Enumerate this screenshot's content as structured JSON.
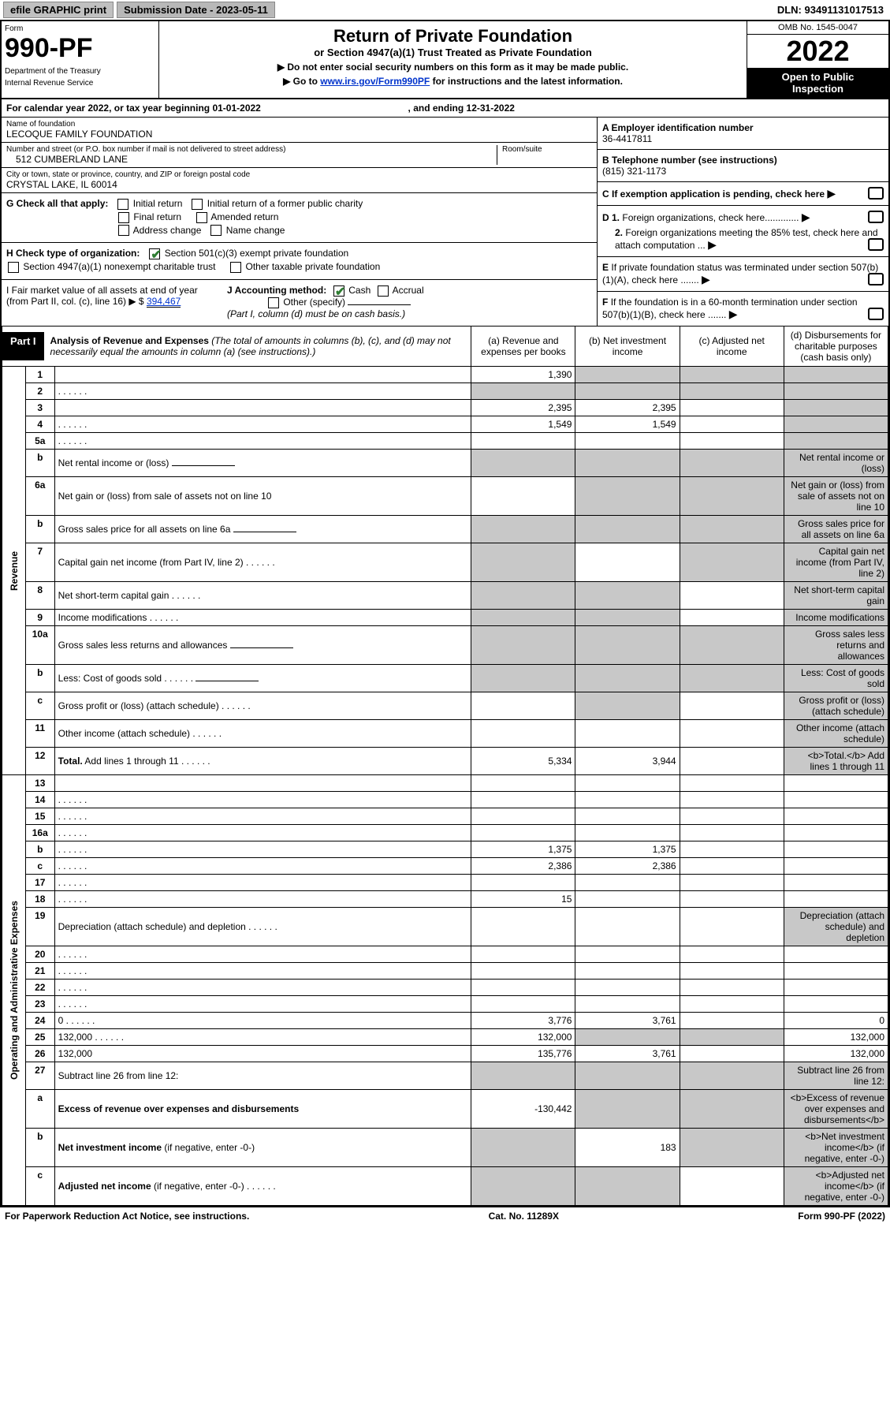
{
  "colors": {
    "black": "#000000",
    "white": "#ffffff",
    "grey_btn": "#c0c0c0",
    "grey_shade": "#c8c8c8",
    "link_blue": "#0033cc",
    "check_green": "#2e7d32"
  },
  "topbar": {
    "efile": "efile GRAPHIC print",
    "submission_label": "Submission Date - 2023-05-11",
    "dln": "DLN: 93491131017513"
  },
  "header": {
    "form_word": "Form",
    "form_number": "990-PF",
    "dept1": "Department of the Treasury",
    "dept2": "Internal Revenue Service",
    "title": "Return of Private Foundation",
    "subtitle": "or Section 4947(a)(1) Trust Treated as Private Foundation",
    "note1": "▶ Do not enter social security numbers on this form as it may be made public.",
    "note2_pre": "▶ Go to ",
    "note2_link": "www.irs.gov/Form990PF",
    "note2_post": " for instructions and the latest information.",
    "omb": "OMB No. 1545-0047",
    "year": "2022",
    "inspect1": "Open to Public",
    "inspect2": "Inspection"
  },
  "cal": {
    "text_pre": "For calendar year 2022, or tax year beginning ",
    "begin": "01-01-2022",
    "text_mid": " , and ending ",
    "end": "12-31-2022"
  },
  "identity": {
    "name_lbl": "Name of foundation",
    "name_val": "LECOQUE FAMILY FOUNDATION",
    "addr_lbl": "Number and street (or P.O. box number if mail is not delivered to street address)",
    "room_lbl": "Room/suite",
    "addr_val": "512 CUMBERLAND LANE",
    "city_lbl": "City or town, state or province, country, and ZIP or foreign postal code",
    "city_val": "CRYSTAL LAKE, IL  60014",
    "ein_lbl": "A Employer identification number",
    "ein_val": "36-4417811",
    "tel_lbl": "B Telephone number (see instructions)",
    "tel_val": "(815) 321-1173",
    "c_lbl": "C If exemption application is pending, check here",
    "d1_lbl": "D 1. Foreign organizations, check here.............",
    "d2_lbl": "2. Foreign organizations meeting the 85% test, check here and attach computation ...",
    "e_lbl": "E  If private foundation status was terminated under section 507(b)(1)(A), check here .......",
    "f_lbl": "F  If the foundation is in a 60-month termination under section 507(b)(1)(B), check here .......",
    "g_lbl": "G Check all that apply:",
    "g_opts": [
      "Initial return",
      "Initial return of a former public charity",
      "Final return",
      "Amended return",
      "Address change",
      "Name change"
    ],
    "h_lbl": "H Check type of organization:",
    "h_opt1": "Section 501(c)(3) exempt private foundation",
    "h_opt2": "Section 4947(a)(1) nonexempt charitable trust",
    "h_opt3": "Other taxable private foundation",
    "i_lbl": "I Fair market value of all assets at end of year (from Part II, col. (c), line 16) ▶ $",
    "i_val": "394,467",
    "j_lbl": "J Accounting method:",
    "j_opt1": "Cash",
    "j_opt2": "Accrual",
    "j_opt3": "Other (specify)",
    "j_note": "(Part I, column (d) must be on cash basis.)"
  },
  "part1": {
    "tag": "Part I",
    "title": "Analysis of Revenue and Expenses",
    "note": "(The total of amounts in columns (b), (c), and (d) may not necessarily equal the amounts in column (a) (see instructions).)",
    "col_a": "(a)   Revenue and expenses per books",
    "col_b": "(b)   Net investment income",
    "col_c": "(c)   Adjusted net income",
    "col_d": "(d)   Disbursements for charitable purposes (cash basis only)",
    "vlabel_rev": "Revenue",
    "vlabel_exp": "Operating and Administrative Expenses"
  },
  "rows": [
    {
      "n": "1",
      "d": "",
      "a": "1,390",
      "b": "",
      "c": "",
      "shade_b": true,
      "shade_c": true,
      "shade_d": true
    },
    {
      "n": "2",
      "d": "",
      "dots": true,
      "a": "",
      "b": "",
      "c": "",
      "shade_all": true
    },
    {
      "n": "3",
      "d": "",
      "a": "2,395",
      "b": "2,395",
      "c": "",
      "shade_d": true
    },
    {
      "n": "4",
      "d": "",
      "dots": true,
      "a": "1,549",
      "b": "1,549",
      "c": "",
      "shade_d": true
    },
    {
      "n": "5a",
      "d": "",
      "dots": true,
      "a": "",
      "b": "",
      "c": "",
      "shade_d": true
    },
    {
      "n": "b",
      "d": "Net rental income or (loss)",
      "line": true,
      "shade_a": true,
      "shade_b": true,
      "shade_c": true,
      "shade_d": true
    },
    {
      "n": "6a",
      "d": "Net gain or (loss) from sale of assets not on line 10",
      "a": "",
      "shade_b": true,
      "shade_c": true,
      "shade_d": true
    },
    {
      "n": "b",
      "d": "Gross sales price for all assets on line 6a",
      "line": true,
      "shade_a": true,
      "shade_b": true,
      "shade_c": true,
      "shade_d": true
    },
    {
      "n": "7",
      "d": "Capital gain net income (from Part IV, line 2)",
      "dots": true,
      "shade_a": true,
      "b": "",
      "shade_c": true,
      "shade_d": true
    },
    {
      "n": "8",
      "d": "Net short-term capital gain",
      "dots": true,
      "shade_a": true,
      "shade_b": true,
      "c": "",
      "shade_d": true
    },
    {
      "n": "9",
      "d": "Income modifications",
      "dots": true,
      "shade_a": true,
      "shade_b": true,
      "c": "",
      "shade_d": true
    },
    {
      "n": "10a",
      "d": "Gross sales less returns and allowances",
      "line": true,
      "shade_a": true,
      "shade_b": true,
      "shade_c": true,
      "shade_d": true
    },
    {
      "n": "b",
      "d": "Less: Cost of goods sold",
      "dots": true,
      "line": true,
      "shade_a": true,
      "shade_b": true,
      "shade_c": true,
      "shade_d": true
    },
    {
      "n": "c",
      "d": "Gross profit or (loss) (attach schedule)",
      "dots": true,
      "a": "",
      "shade_b": true,
      "c": "",
      "shade_d": true
    },
    {
      "n": "11",
      "d": "Other income (attach schedule)",
      "dots": true,
      "a": "",
      "b": "",
      "c": "",
      "shade_d": true
    },
    {
      "n": "12",
      "d": "<b>Total.</b> Add lines 1 through 11",
      "dots": true,
      "a": "5,334",
      "b": "3,944",
      "c": "",
      "shade_d": true,
      "bold": true
    },
    {
      "n": "13",
      "d": "",
      "a": "",
      "b": "",
      "c": ""
    },
    {
      "n": "14",
      "d": "",
      "dots": true,
      "a": "",
      "b": "",
      "c": ""
    },
    {
      "n": "15",
      "d": "",
      "dots": true,
      "a": "",
      "b": "",
      "c": ""
    },
    {
      "n": "16a",
      "d": "",
      "dots": true,
      "a": "",
      "b": "",
      "c": ""
    },
    {
      "n": "b",
      "d": "",
      "dots": true,
      "a": "1,375",
      "b": "1,375",
      "c": ""
    },
    {
      "n": "c",
      "d": "",
      "dots": true,
      "a": "2,386",
      "b": "2,386",
      "c": ""
    },
    {
      "n": "17",
      "d": "",
      "dots": true,
      "a": "",
      "b": "",
      "c": ""
    },
    {
      "n": "18",
      "d": "",
      "dots": true,
      "a": "15",
      "b": "",
      "c": ""
    },
    {
      "n": "19",
      "d": "Depreciation (attach schedule) and depletion",
      "dots": true,
      "a": "",
      "b": "",
      "c": "",
      "shade_d": true
    },
    {
      "n": "20",
      "d": "",
      "dots": true,
      "a": "",
      "b": "",
      "c": ""
    },
    {
      "n": "21",
      "d": "",
      "dots": true,
      "a": "",
      "b": "",
      "c": ""
    },
    {
      "n": "22",
      "d": "",
      "dots": true,
      "a": "",
      "b": "",
      "c": ""
    },
    {
      "n": "23",
      "d": "",
      "dots": true,
      "a": "",
      "b": "",
      "c": ""
    },
    {
      "n": "24",
      "d": "0",
      "dots": true,
      "a": "3,776",
      "b": "3,761",
      "c": "",
      "bold": true
    },
    {
      "n": "25",
      "d": "132,000",
      "dots": true,
      "a": "132,000",
      "shade_b": true,
      "shade_c": true
    },
    {
      "n": "26",
      "d": "132,000",
      "a": "135,776",
      "b": "3,761",
      "c": "",
      "bold": true
    },
    {
      "n": "27",
      "d": "Subtract line 26 from line 12:",
      "shade_a": true,
      "shade_b": true,
      "shade_c": true,
      "shade_d": true
    },
    {
      "n": "a",
      "d": "<b>Excess of revenue over expenses and disbursements</b>",
      "a": "-130,442",
      "shade_b": true,
      "shade_c": true,
      "shade_d": true
    },
    {
      "n": "b",
      "d": "<b>Net investment income</b> (if negative, enter -0-)",
      "shade_a": true,
      "b": "183",
      "shade_c": true,
      "shade_d": true
    },
    {
      "n": "c",
      "d": "<b>Adjusted net income</b> (if negative, enter -0-)",
      "dots": true,
      "shade_a": true,
      "shade_b": true,
      "c": "",
      "shade_d": true
    }
  ],
  "footer": {
    "left": "For Paperwork Reduction Act Notice, see instructions.",
    "mid": "Cat. No. 11289X",
    "right": "Form 990-PF (2022)"
  }
}
